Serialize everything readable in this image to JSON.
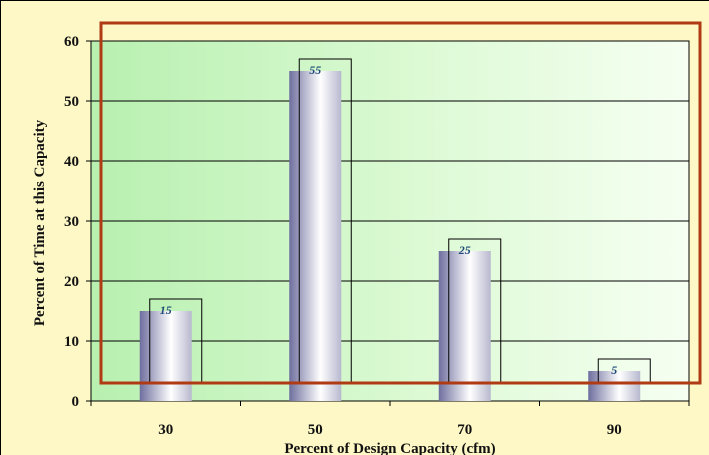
{
  "chart_data": {
    "type": "bar",
    "categories": [
      "30",
      "50",
      "70",
      "90"
    ],
    "values": [
      15,
      55,
      25,
      5
    ],
    "data_labels": [
      "15",
      "55",
      "25",
      "5"
    ],
    "title": "",
    "xlabel": "Percent of Design Capacity (cfm)",
    "ylabel": "Percent of Time at this Capacity",
    "ylim": [
      0,
      60
    ],
    "yticks": [
      "0",
      "10",
      "20",
      "30",
      "40",
      "50",
      "60"
    ],
    "ytick_values": [
      0,
      10,
      20,
      30,
      40,
      50,
      60
    ],
    "grid": true,
    "legend": "none",
    "colors": {
      "background": "#fdf8c6",
      "plot_area_light": "#f4fff0",
      "plot_area_dark": "#b8f0b0",
      "bar_dark": "#6e6e9e",
      "bar_light": "#ffffff",
      "highlight_frame": "#b03a14",
      "data_label": "#1f4a78"
    }
  }
}
